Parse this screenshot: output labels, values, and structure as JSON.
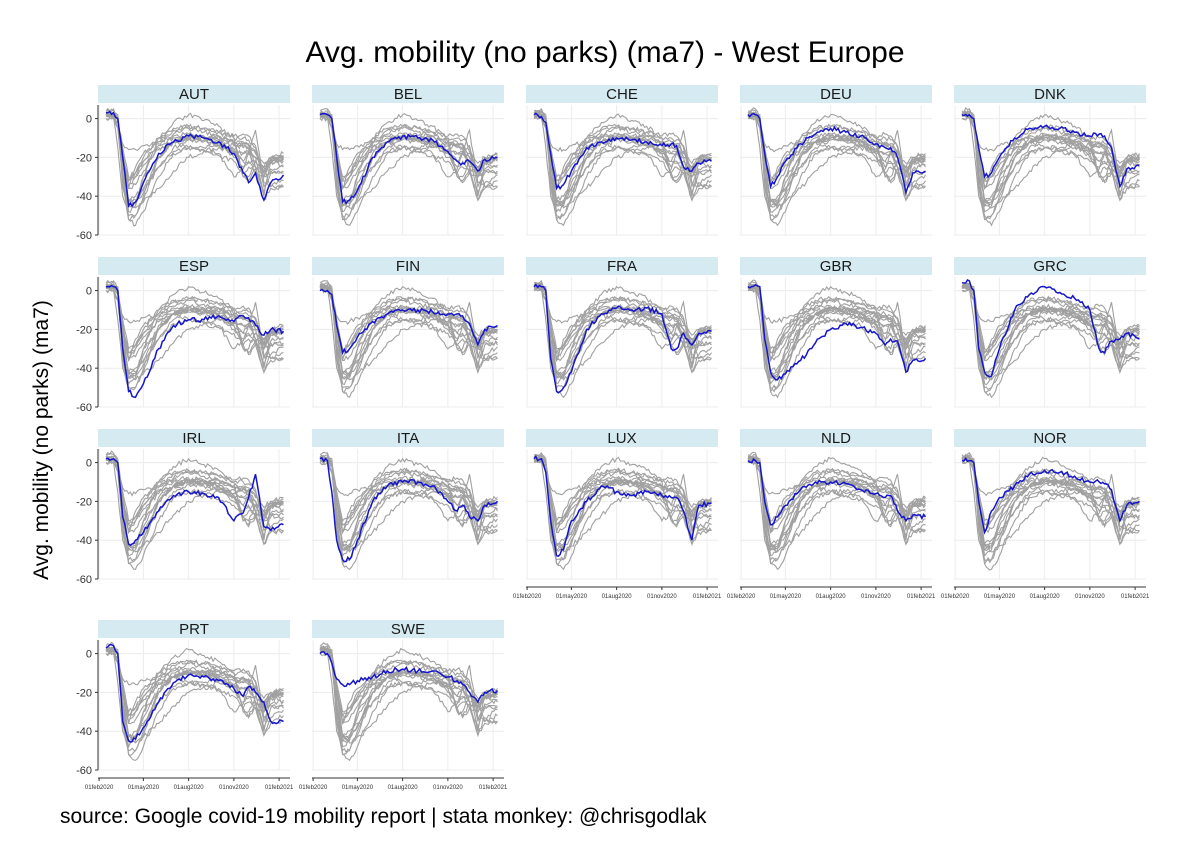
{
  "title": "Avg. mobility (no parks) (ma7) - West Europe",
  "caption": "source: Google covid-19 mobility report | stata monkey: @chrisgodlak",
  "colors": {
    "highlight": "#1515cc",
    "background_lines": "#a0a0a0",
    "strip": "#d5ebf1",
    "grid": "#ececec",
    "axis": "#333333"
  },
  "chart_data": {
    "type": "line",
    "title": "Avg. mobility (no parks) (ma7) - West Europe",
    "ylabel": "Avg. mobility (no parks) (ma7)",
    "xlabel": "",
    "ylim": [
      -60,
      7
    ],
    "y_ticks": [
      0,
      -20,
      -40,
      -60
    ],
    "y_tick_labels": [
      "0",
      "-20",
      "-40",
      "-60"
    ],
    "x_ticks": [
      "2020-02-01",
      "2020-05-01",
      "2020-08-01",
      "2020-11-01",
      "2021-02-01"
    ],
    "x_tick_labels": [
      "01feb2020",
      "01may2020",
      "01aug2020",
      "01nov2020",
      "01feb2021"
    ],
    "x_range": [
      "2020-02-15",
      "2021-02-15"
    ],
    "grid": true,
    "legend": "none",
    "panels": [
      "AUT",
      "BEL",
      "CHE",
      "DEU",
      "DNK",
      "ESP",
      "FIN",
      "FRA",
      "GBR",
      "GRC",
      "IRL",
      "ITA",
      "LUX",
      "NLD",
      "NOR",
      "PRT",
      "SWE"
    ],
    "series": [
      {
        "name": "AUT",
        "x": [
          "2020-02-15",
          "2020-03-01",
          "2020-03-10",
          "2020-03-20",
          "2020-04-01",
          "2020-04-15",
          "2020-05-01",
          "2020-06-01",
          "2020-07-01",
          "2020-08-01",
          "2020-09-01",
          "2020-10-01",
          "2020-11-01",
          "2020-11-20",
          "2020-12-01",
          "2020-12-15",
          "2021-01-01",
          "2021-01-15",
          "2021-02-10"
        ],
        "values": [
          3,
          3,
          0,
          -20,
          -45,
          -43,
          -33,
          -18,
          -12,
          -9,
          -10,
          -12,
          -18,
          -28,
          -33,
          -28,
          -42,
          -33,
          -29
        ]
      },
      {
        "name": "BEL",
        "x": [
          "2020-02-15",
          "2020-03-01",
          "2020-03-10",
          "2020-03-20",
          "2020-04-01",
          "2020-04-15",
          "2020-05-01",
          "2020-06-01",
          "2020-07-01",
          "2020-08-01",
          "2020-09-01",
          "2020-10-01",
          "2020-11-01",
          "2020-11-20",
          "2020-12-01",
          "2020-12-15",
          "2021-01-01",
          "2021-01-15",
          "2021-02-10"
        ],
        "values": [
          2,
          2,
          0,
          -20,
          -43,
          -42,
          -37,
          -20,
          -12,
          -9,
          -10,
          -11,
          -17,
          -22,
          -23,
          -22,
          -27,
          -21,
          -20
        ]
      },
      {
        "name": "CHE",
        "x": [
          "2020-02-15",
          "2020-03-01",
          "2020-03-10",
          "2020-03-20",
          "2020-04-01",
          "2020-04-15",
          "2020-05-01",
          "2020-06-01",
          "2020-07-01",
          "2020-08-01",
          "2020-09-01",
          "2020-10-01",
          "2020-11-01",
          "2020-11-20",
          "2020-12-01",
          "2020-12-15",
          "2021-01-01",
          "2021-01-15",
          "2021-02-10"
        ],
        "values": [
          2,
          1,
          -2,
          -18,
          -36,
          -34,
          -27,
          -15,
          -12,
          -10,
          -11,
          -12,
          -14,
          -13,
          -14,
          -25,
          -27,
          -23,
          -22
        ]
      },
      {
        "name": "DEU",
        "x": [
          "2020-02-15",
          "2020-03-01",
          "2020-03-10",
          "2020-03-20",
          "2020-04-01",
          "2020-04-15",
          "2020-05-01",
          "2020-06-01",
          "2020-07-01",
          "2020-08-01",
          "2020-09-01",
          "2020-10-01",
          "2020-11-01",
          "2020-11-20",
          "2020-12-01",
          "2020-12-15",
          "2021-01-01",
          "2021-01-15",
          "2021-02-10"
        ],
        "values": [
          2,
          2,
          0,
          -18,
          -35,
          -30,
          -22,
          -13,
          -8,
          -5,
          -7,
          -9,
          -13,
          -15,
          -15,
          -20,
          -38,
          -28,
          -27
        ]
      },
      {
        "name": "DNK",
        "x": [
          "2020-02-15",
          "2020-03-01",
          "2020-03-10",
          "2020-03-20",
          "2020-04-01",
          "2020-04-15",
          "2020-05-01",
          "2020-06-01",
          "2020-07-01",
          "2020-08-01",
          "2020-09-01",
          "2020-10-01",
          "2020-11-01",
          "2020-11-20",
          "2020-12-01",
          "2020-12-15",
          "2021-01-01",
          "2021-01-15",
          "2021-02-10"
        ],
        "values": [
          2,
          2,
          0,
          -15,
          -30,
          -28,
          -20,
          -10,
          -5,
          -4,
          -5,
          -7,
          -9,
          -8,
          -9,
          -15,
          -35,
          -26,
          -24
        ]
      },
      {
        "name": "ESP",
        "x": [
          "2020-02-15",
          "2020-03-01",
          "2020-03-10",
          "2020-03-20",
          "2020-04-01",
          "2020-04-15",
          "2020-05-01",
          "2020-06-01",
          "2020-07-01",
          "2020-08-01",
          "2020-09-01",
          "2020-10-01",
          "2020-11-01",
          "2020-11-20",
          "2020-12-01",
          "2020-12-15",
          "2021-01-01",
          "2021-01-15",
          "2021-02-10"
        ],
        "values": [
          2,
          2,
          0,
          -30,
          -52,
          -55,
          -48,
          -30,
          -18,
          -15,
          -15,
          -13,
          -16,
          -13,
          -14,
          -18,
          -23,
          -20,
          -21
        ]
      },
      {
        "name": "FIN",
        "x": [
          "2020-02-15",
          "2020-03-01",
          "2020-03-10",
          "2020-03-20",
          "2020-04-01",
          "2020-04-15",
          "2020-05-01",
          "2020-06-01",
          "2020-07-01",
          "2020-08-01",
          "2020-09-01",
          "2020-10-01",
          "2020-11-01",
          "2020-11-20",
          "2020-12-01",
          "2020-12-15",
          "2021-01-01",
          "2021-01-15",
          "2021-02-10"
        ],
        "values": [
          0,
          0,
          -2,
          -18,
          -32,
          -30,
          -24,
          -16,
          -12,
          -10,
          -10,
          -11,
          -12,
          -12,
          -13,
          -17,
          -28,
          -20,
          -18
        ]
      },
      {
        "name": "FRA",
        "x": [
          "2020-02-15",
          "2020-03-01",
          "2020-03-10",
          "2020-03-20",
          "2020-04-01",
          "2020-04-15",
          "2020-05-01",
          "2020-06-01",
          "2020-07-01",
          "2020-08-01",
          "2020-09-01",
          "2020-10-01",
          "2020-11-01",
          "2020-11-20",
          "2020-12-01",
          "2020-12-15",
          "2021-01-01",
          "2021-01-15",
          "2021-02-10"
        ],
        "values": [
          2,
          2,
          0,
          -35,
          -52,
          -50,
          -42,
          -20,
          -12,
          -9,
          -10,
          -9,
          -12,
          -30,
          -30,
          -22,
          -28,
          -22,
          -21
        ]
      },
      {
        "name": "GBR",
        "x": [
          "2020-02-15",
          "2020-03-01",
          "2020-03-10",
          "2020-03-20",
          "2020-04-01",
          "2020-04-15",
          "2020-05-01",
          "2020-06-01",
          "2020-07-01",
          "2020-08-01",
          "2020-09-01",
          "2020-10-01",
          "2020-11-01",
          "2020-11-20",
          "2020-12-01",
          "2020-12-15",
          "2021-01-01",
          "2021-01-15",
          "2021-02-10"
        ],
        "values": [
          2,
          3,
          2,
          -25,
          -42,
          -46,
          -43,
          -36,
          -27,
          -20,
          -17,
          -19,
          -22,
          -28,
          -25,
          -26,
          -42,
          -36,
          -35
        ]
      },
      {
        "name": "GRC",
        "x": [
          "2020-02-15",
          "2020-03-01",
          "2020-03-10",
          "2020-03-20",
          "2020-04-01",
          "2020-04-15",
          "2020-05-01",
          "2020-06-01",
          "2020-07-01",
          "2020-08-01",
          "2020-09-01",
          "2020-10-01",
          "2020-11-01",
          "2020-11-20",
          "2020-12-01",
          "2020-12-15",
          "2021-01-01",
          "2021-01-15",
          "2021-02-10"
        ],
        "values": [
          4,
          5,
          0,
          -30,
          -42,
          -44,
          -30,
          -10,
          -2,
          2,
          -1,
          -4,
          -10,
          -30,
          -32,
          -26,
          -25,
          -22,
          -25
        ]
      },
      {
        "name": "IRL",
        "x": [
          "2020-02-15",
          "2020-03-01",
          "2020-03-10",
          "2020-03-20",
          "2020-04-01",
          "2020-04-15",
          "2020-05-01",
          "2020-06-01",
          "2020-07-01",
          "2020-08-01",
          "2020-09-01",
          "2020-10-01",
          "2020-11-01",
          "2020-11-20",
          "2020-12-01",
          "2020-12-15",
          "2021-01-01",
          "2021-01-15",
          "2021-02-10"
        ],
        "values": [
          2,
          2,
          0,
          -28,
          -42,
          -40,
          -36,
          -25,
          -17,
          -15,
          -16,
          -18,
          -30,
          -26,
          -18,
          -6,
          -33,
          -35,
          -32
        ]
      },
      {
        "name": "ITA",
        "x": [
          "2020-02-15",
          "2020-03-01",
          "2020-03-10",
          "2020-03-20",
          "2020-04-01",
          "2020-04-15",
          "2020-05-01",
          "2020-06-01",
          "2020-07-01",
          "2020-08-01",
          "2020-09-01",
          "2020-10-01",
          "2020-11-01",
          "2020-11-20",
          "2020-12-01",
          "2020-12-15",
          "2021-01-01",
          "2021-01-15",
          "2021-02-10"
        ],
        "values": [
          2,
          1,
          -15,
          -40,
          -50,
          -50,
          -40,
          -20,
          -12,
          -10,
          -10,
          -12,
          -20,
          -25,
          -22,
          -28,
          -30,
          -22,
          -20
        ]
      },
      {
        "name": "LUX",
        "x": [
          "2020-02-15",
          "2020-03-01",
          "2020-03-10",
          "2020-03-20",
          "2020-04-01",
          "2020-04-15",
          "2020-05-01",
          "2020-06-01",
          "2020-07-01",
          "2020-08-01",
          "2020-09-01",
          "2020-10-01",
          "2020-11-01",
          "2020-11-20",
          "2020-12-01",
          "2020-12-15",
          "2021-01-01",
          "2021-01-15",
          "2021-02-10"
        ],
        "values": [
          2,
          2,
          -5,
          -30,
          -48,
          -45,
          -30,
          -20,
          -12,
          -15,
          -17,
          -15,
          -17,
          -18,
          -18,
          -25,
          -40,
          -22,
          -21
        ]
      },
      {
        "name": "NLD",
        "x": [
          "2020-02-15",
          "2020-03-01",
          "2020-03-10",
          "2020-03-20",
          "2020-04-01",
          "2020-04-15",
          "2020-05-01",
          "2020-06-01",
          "2020-07-01",
          "2020-08-01",
          "2020-09-01",
          "2020-10-01",
          "2020-11-01",
          "2020-11-20",
          "2020-12-01",
          "2020-12-15",
          "2021-01-01",
          "2021-01-15",
          "2021-02-10"
        ],
        "values": [
          1,
          1,
          0,
          -20,
          -32,
          -28,
          -22,
          -14,
          -10,
          -10,
          -11,
          -14,
          -16,
          -18,
          -17,
          -25,
          -30,
          -27,
          -28
        ]
      },
      {
        "name": "NOR",
        "x": [
          "2020-02-15",
          "2020-03-01",
          "2020-03-10",
          "2020-03-20",
          "2020-04-01",
          "2020-04-15",
          "2020-05-01",
          "2020-06-01",
          "2020-07-01",
          "2020-08-01",
          "2020-09-01",
          "2020-10-01",
          "2020-11-01",
          "2020-11-20",
          "2020-12-01",
          "2020-12-15",
          "2021-01-01",
          "2021-01-15",
          "2021-02-10"
        ],
        "values": [
          1,
          1,
          0,
          -20,
          -36,
          -25,
          -18,
          -12,
          -6,
          -4,
          -5,
          -7,
          -10,
          -10,
          -11,
          -14,
          -30,
          -22,
          -20
        ]
      },
      {
        "name": "PRT",
        "x": [
          "2020-02-15",
          "2020-03-01",
          "2020-03-10",
          "2020-03-20",
          "2020-04-01",
          "2020-04-15",
          "2020-05-01",
          "2020-06-01",
          "2020-07-01",
          "2020-08-01",
          "2020-09-01",
          "2020-10-01",
          "2020-11-01",
          "2020-11-20",
          "2020-12-01",
          "2020-12-15",
          "2021-01-01",
          "2021-01-15",
          "2021-02-10"
        ],
        "values": [
          3,
          4,
          0,
          -35,
          -45,
          -44,
          -38,
          -25,
          -15,
          -11,
          -12,
          -14,
          -18,
          -22,
          -17,
          -20,
          -25,
          -35,
          -35
        ]
      },
      {
        "name": "SWE",
        "x": [
          "2020-02-15",
          "2020-03-01",
          "2020-03-10",
          "2020-03-20",
          "2020-04-01",
          "2020-04-15",
          "2020-05-01",
          "2020-06-01",
          "2020-07-01",
          "2020-08-01",
          "2020-09-01",
          "2020-10-01",
          "2020-11-01",
          "2020-11-20",
          "2020-12-01",
          "2020-12-15",
          "2021-01-01",
          "2021-01-15",
          "2021-02-10"
        ],
        "values": [
          0,
          0,
          -5,
          -13,
          -16,
          -16,
          -14,
          -12,
          -9,
          -8,
          -9,
          -9,
          -12,
          -14,
          -16,
          -20,
          -25,
          -20,
          -19
        ]
      }
    ]
  }
}
